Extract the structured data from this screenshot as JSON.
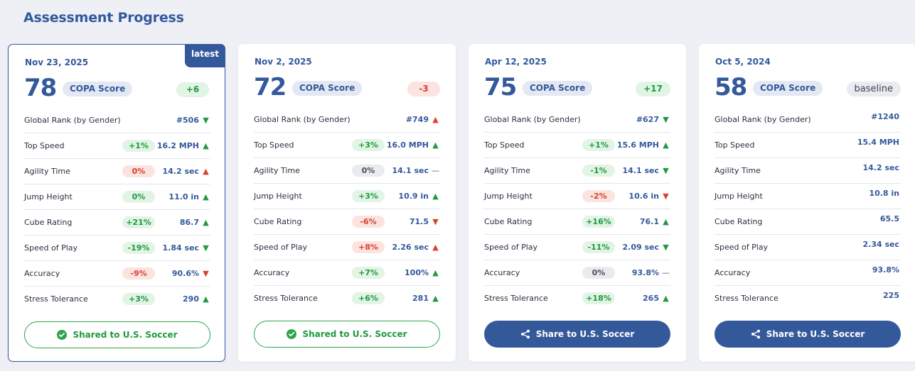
{
  "page_title": "Assessment Progress",
  "cards": [
    {
      "date": "Nov 23, 2025",
      "tag": "latest",
      "score": "78",
      "score_label": "COPA Score",
      "delta": "+6",
      "delta_type": "pos",
      "rows": [
        {
          "label": "Global Rank (by Gender)",
          "chip": "",
          "chip_type": "",
          "value": "#506",
          "arrow": "down",
          "arrow_good": true
        },
        {
          "label": "Top Speed",
          "chip": "+1%",
          "chip_type": "pos",
          "value": "16.2 MPH",
          "arrow": "up",
          "arrow_good": true
        },
        {
          "label": "Agility Time",
          "chip": "0%",
          "chip_type": "neg",
          "value": "14.2 sec",
          "arrow": "up",
          "arrow_good": false
        },
        {
          "label": "Jump Height",
          "chip": "0%",
          "chip_type": "pos",
          "value": "11.0 in",
          "arrow": "up",
          "arrow_good": true
        },
        {
          "label": "Cube Rating",
          "chip": "+21%",
          "chip_type": "pos",
          "value": "86.7",
          "arrow": "up",
          "arrow_good": true
        },
        {
          "label": "Speed of Play",
          "chip": "-19%",
          "chip_type": "pos",
          "value": "1.84 sec",
          "arrow": "down",
          "arrow_good": true
        },
        {
          "label": "Accuracy",
          "chip": "-9%",
          "chip_type": "neg",
          "value": "90.6%",
          "arrow": "down",
          "arrow_good": false
        },
        {
          "label": "Stress Tolerance",
          "chip": "+3%",
          "chip_type": "pos",
          "value": "290",
          "arrow": "up",
          "arrow_good": true
        }
      ],
      "button_label": "Shared to U.S. Soccer",
      "button_type": "shared"
    },
    {
      "date": "Nov 2, 2025",
      "tag": "",
      "score": "72",
      "score_label": "COPA Score",
      "delta": "-3",
      "delta_type": "neg",
      "rows": [
        {
          "label": "Global Rank (by Gender)",
          "chip": "",
          "chip_type": "",
          "value": "#749",
          "arrow": "up",
          "arrow_good": false
        },
        {
          "label": "Top Speed",
          "chip": "+3%",
          "chip_type": "pos",
          "value": "16.0 MPH",
          "arrow": "up",
          "arrow_good": true
        },
        {
          "label": "Agility Time",
          "chip": "0%",
          "chip_type": "neu",
          "value": "14.1 sec",
          "arrow": "flat",
          "arrow_good": true
        },
        {
          "label": "Jump Height",
          "chip": "+3%",
          "chip_type": "pos",
          "value": "10.9 in",
          "arrow": "up",
          "arrow_good": true
        },
        {
          "label": "Cube Rating",
          "chip": "-6%",
          "chip_type": "neg",
          "value": "71.5",
          "arrow": "down",
          "arrow_good": false
        },
        {
          "label": "Speed of Play",
          "chip": "+8%",
          "chip_type": "neg",
          "value": "2.26 sec",
          "arrow": "up",
          "arrow_good": false
        },
        {
          "label": "Accuracy",
          "chip": "+7%",
          "chip_type": "pos",
          "value": "100%",
          "arrow": "up",
          "arrow_good": true
        },
        {
          "label": "Stress Tolerance",
          "chip": "+6%",
          "chip_type": "pos",
          "value": "281",
          "arrow": "up",
          "arrow_good": true
        }
      ],
      "button_label": "Shared to U.S. Soccer",
      "button_type": "shared"
    },
    {
      "date": "Apr 12, 2025",
      "tag": "",
      "score": "75",
      "score_label": "COPA Score",
      "delta": "+17",
      "delta_type": "pos",
      "rows": [
        {
          "label": "Global Rank (by Gender)",
          "chip": "",
          "chip_type": "",
          "value": "#627",
          "arrow": "down",
          "arrow_good": true
        },
        {
          "label": "Top Speed",
          "chip": "+1%",
          "chip_type": "pos",
          "value": "15.6 MPH",
          "arrow": "up",
          "arrow_good": true
        },
        {
          "label": "Agility Time",
          "chip": "-1%",
          "chip_type": "pos",
          "value": "14.1 sec",
          "arrow": "down",
          "arrow_good": true
        },
        {
          "label": "Jump Height",
          "chip": "-2%",
          "chip_type": "neg",
          "value": "10.6 in",
          "arrow": "down",
          "arrow_good": false
        },
        {
          "label": "Cube Rating",
          "chip": "+16%",
          "chip_type": "pos",
          "value": "76.1",
          "arrow": "up",
          "arrow_good": true
        },
        {
          "label": "Speed of Play",
          "chip": "-11%",
          "chip_type": "pos",
          "value": "2.09 sec",
          "arrow": "down",
          "arrow_good": true
        },
        {
          "label": "Accuracy",
          "chip": "0%",
          "chip_type": "neu",
          "value": "93.8%",
          "arrow": "flat",
          "arrow_good": true
        },
        {
          "label": "Stress Tolerance",
          "chip": "+18%",
          "chip_type": "pos",
          "value": "265",
          "arrow": "up",
          "arrow_good": true
        }
      ],
      "button_label": "Share to U.S. Soccer",
      "button_type": "share"
    },
    {
      "date": "Oct 5, 2024",
      "tag": "",
      "score": "58",
      "score_label": "COPA Score",
      "delta": "baseline",
      "delta_type": "base",
      "rows": [
        {
          "label": "Global Rank (by Gender)",
          "chip": "",
          "chip_type": "",
          "value": "#1240",
          "arrow": "",
          "arrow_good": true
        },
        {
          "label": "Top Speed",
          "chip": "",
          "chip_type": "",
          "value": "15.4 MPH",
          "arrow": "",
          "arrow_good": true
        },
        {
          "label": "Agility Time",
          "chip": "",
          "chip_type": "",
          "value": "14.2 sec",
          "arrow": "",
          "arrow_good": true
        },
        {
          "label": "Jump Height",
          "chip": "",
          "chip_type": "",
          "value": "10.8 in",
          "arrow": "",
          "arrow_good": true
        },
        {
          "label": "Cube Rating",
          "chip": "",
          "chip_type": "",
          "value": "65.5",
          "arrow": "",
          "arrow_good": true
        },
        {
          "label": "Speed of Play",
          "chip": "",
          "chip_type": "",
          "value": "2.34 sec",
          "arrow": "",
          "arrow_good": true
        },
        {
          "label": "Accuracy",
          "chip": "",
          "chip_type": "",
          "value": "93.8%",
          "arrow": "",
          "arrow_good": true
        },
        {
          "label": "Stress Tolerance",
          "chip": "",
          "chip_type": "",
          "value": "225",
          "arrow": "",
          "arrow_good": true
        }
      ],
      "button_label": "Share to U.S. Soccer",
      "button_type": "share"
    }
  ],
  "colors": {
    "accent": "#34599b",
    "positive": "#1f9a3e",
    "negative": "#d8412e"
  },
  "icons": {
    "shared": "check-circle-icon",
    "share": "share-icon",
    "up": "triangle-up-icon",
    "down": "triangle-down-icon",
    "flat": "dash-icon"
  }
}
